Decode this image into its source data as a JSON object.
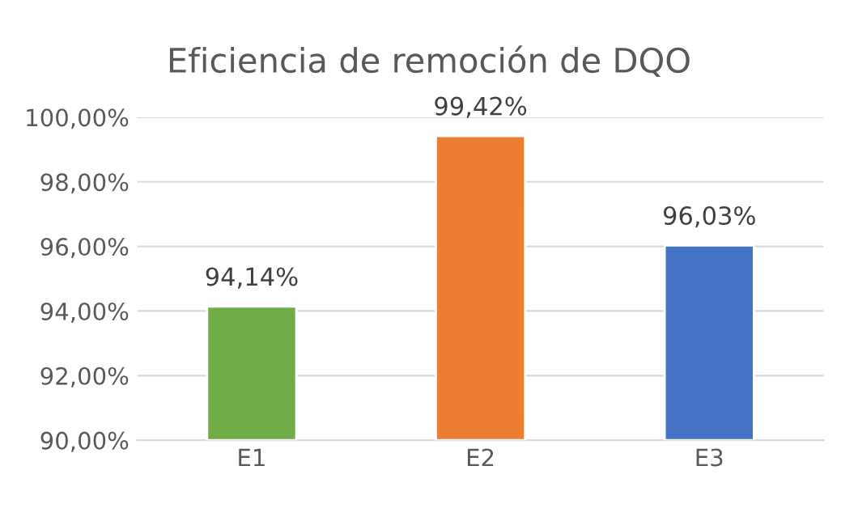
{
  "chart_data": {
    "type": "bar",
    "title": "Eficiencia de remoción de DQO",
    "categories": [
      "E1",
      "E2",
      "E3"
    ],
    "values": [
      94.14,
      99.42,
      96.03
    ],
    "colors": [
      "#70ad47",
      "#ed7d31",
      "#4472c4"
    ],
    "value_labels": [
      "94,14%",
      "99,42%",
      "96,03%"
    ],
    "ylim": [
      90,
      100
    ],
    "yticks": [
      {
        "value": 90,
        "label": "90,00%"
      },
      {
        "value": 92,
        "label": "92,00%"
      },
      {
        "value": 94,
        "label": "94,00%"
      },
      {
        "value": 96,
        "label": "96,00%"
      },
      {
        "value": 98,
        "label": "98,00%"
      },
      {
        "value": 100,
        "label": "100,00%"
      }
    ],
    "grid": "y",
    "legend": false
  }
}
